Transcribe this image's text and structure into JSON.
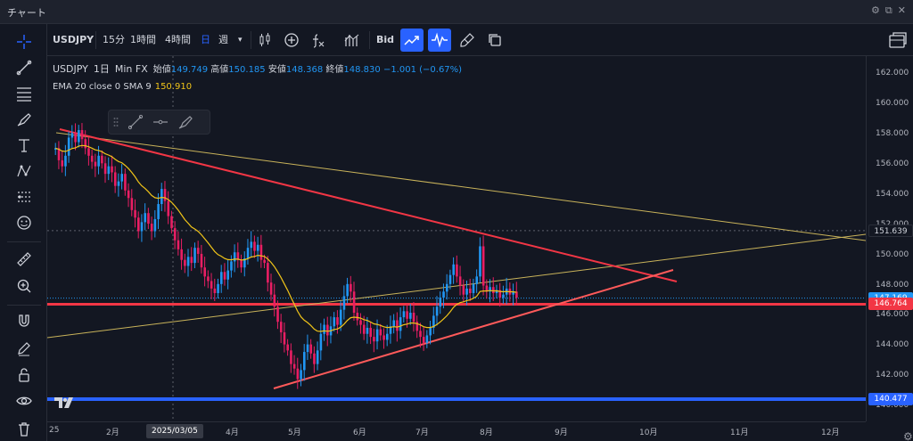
{
  "window": {
    "title": "チャート"
  },
  "toolbar": {
    "symbol": "USDJPY",
    "intervals": [
      "15分",
      "1時間",
      "4時間",
      "日",
      "週"
    ],
    "interval_more": "▾",
    "bid_label": "Bid"
  },
  "legend": {
    "symbol": "USDJPY",
    "interval": "1日",
    "source": "Min FX",
    "open_label": "始値",
    "open": "149.749",
    "high_label": "高値",
    "high": "150.185",
    "low_label": "安値",
    "low": "148.368",
    "close_label": "終値",
    "close": "148.830",
    "change": "−1.001 (−0.67%)",
    "indicator_name": "EMA 20 close 0 SMA 9",
    "indicator_value": "150.910"
  },
  "price_axis": {
    "ticks": [
      "162.000",
      "160.000",
      "158.000",
      "156.000",
      "154.000",
      "152.000",
      "150.000",
      "148.000",
      "146.000",
      "144.000",
      "142.000",
      "140.000"
    ],
    "tags": [
      {
        "value": "151.639",
        "bg": "#131722",
        "fg": "#d1d4dc"
      },
      {
        "value": "147.169",
        "bg": "#2196f3",
        "fg": "#ffffff"
      },
      {
        "value": "146.764",
        "bg": "#f23645",
        "fg": "#ffffff"
      },
      {
        "value": "140.477",
        "bg": "#2962ff",
        "fg": "#ffffff"
      }
    ]
  },
  "time_axis": {
    "labels": [
      "25",
      "2月",
      "4月",
      "5月",
      "6月",
      "7月",
      "8月",
      "9月",
      "10月",
      "11月",
      "12月"
    ],
    "crosshair_date": "2025/03/05"
  },
  "colors": {
    "bg": "#131722",
    "up": "#2196f3",
    "down": "#e91e63",
    "ema": "#f0c419",
    "trend_red": "#f23645",
    "trend_pink": "#ff5a5a",
    "long_trend": "#c9b35a",
    "support_blue": "#2962ff"
  },
  "chart_data": {
    "type": "candlestick",
    "y_range": [
      139.0,
      163.2
    ],
    "closes": [
      157.1,
      156.3,
      155.9,
      156.6,
      157.8,
      158.1,
      157.5,
      158.3,
      157.7,
      157.1,
      156.6,
      156.2,
      155.9,
      156.6,
      156.1,
      155.4,
      155.9,
      155.5,
      154.6,
      154.9,
      155.4,
      154.3,
      153.8,
      153.0,
      152.5,
      151.6,
      152.2,
      152.8,
      152.1,
      151.6,
      152.4,
      153.4,
      154.4,
      153.6,
      152.6,
      151.8,
      151.0,
      150.4,
      149.7,
      149.3,
      149.9,
      149.5,
      150.5,
      150.1,
      149.2,
      148.6,
      148.3,
      147.8,
      147.5,
      148.1,
      148.9,
      148.4,
      149.0,
      149.6,
      150.2,
      149.7,
      149.2,
      149.8,
      150.5,
      150.9,
      150.3,
      150.7,
      149.7,
      149.5,
      148.2,
      147.4,
      146.6,
      145.6,
      144.9,
      144.1,
      143.7,
      142.8,
      142.5,
      141.8,
      142.4,
      143.6,
      144.1,
      143.5,
      142.8,
      143.7,
      144.8,
      145.4,
      144.7,
      145.3,
      145.9,
      145.4,
      146.4,
      147.3,
      148.1,
      147.6,
      146.2,
      145.7,
      145.4,
      144.8,
      145.2,
      144.6,
      144.3,
      145.1,
      144.7,
      144.4,
      144.8,
      145.3,
      145.7,
      145.0,
      145.9,
      146.3,
      145.8,
      146.2,
      145.6,
      145.0,
      144.6,
      144.2,
      144.7,
      145.2,
      146.0,
      146.6,
      147.2,
      147.6,
      148.1,
      148.7,
      149.4,
      148.6,
      148.0,
      147.4,
      147.8,
      147.5,
      148.1,
      148.6,
      150.6,
      148.0,
      147.6,
      147.9,
      147.5,
      147.7,
      147.2,
      147.4,
      147.8,
      147.4,
      147.6,
      147.2
    ]
  }
}
